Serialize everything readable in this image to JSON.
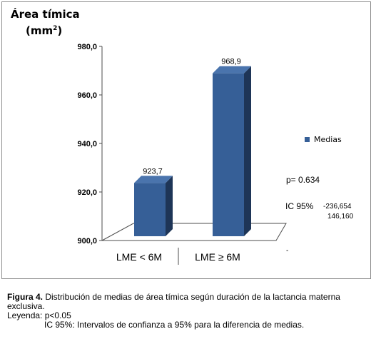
{
  "chart_data": {
    "type": "bar",
    "categories": [
      "LME < 6M",
      "LME ≥ 6M"
    ],
    "series": [
      {
        "name": "Medias",
        "values": [
          923.7,
          968.9
        ],
        "labels": [
          "923,7",
          "968,9"
        ]
      }
    ],
    "ylabel": "Área tímica",
    "ylabel_unit_base": "(mm",
    "ylabel_unit_exp": "2",
    "ylabel_unit_close": ")",
    "ylim": [
      900,
      980
    ],
    "yticks": [
      "900,0",
      "920,0",
      "940,0",
      "960,0",
      "980,0"
    ],
    "ytick_values": [
      900,
      920,
      940,
      960,
      980
    ],
    "legend_position": "right",
    "grid": false,
    "style": "3d",
    "colors": {
      "front": "#365f97",
      "side": "#1e3557",
      "top": "#4a74ad"
    }
  },
  "annotations": {
    "p_value": "p= 0.634",
    "ic_label": "IC 95%",
    "ic_low": "-236,654",
    "ic_high": "146,160",
    "dash": "-"
  },
  "caption": {
    "fig_label": "Figura 4.",
    "fig_text": " Distribución de medias de área tímica según duración de la lactancia materna exclusiva.",
    "legend_line": "Leyenda: p<0.05",
    "ic_line": "IC 95%: Intervalos de confianza a 95% para la diferencia de medias."
  }
}
